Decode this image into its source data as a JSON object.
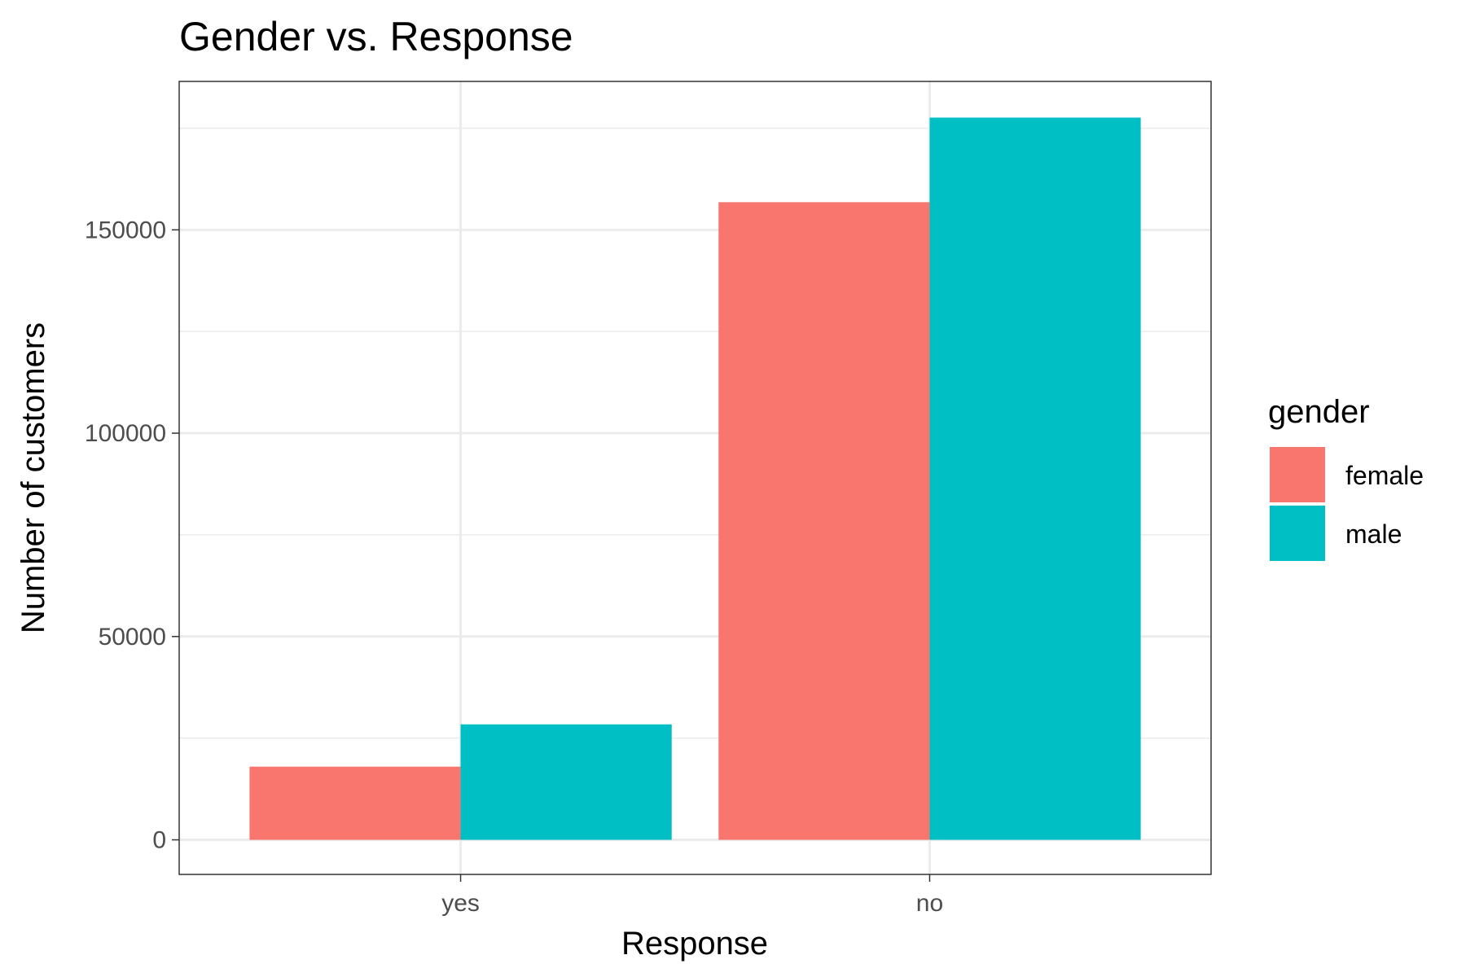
{
  "chart_data": {
    "type": "bar",
    "title": "Gender vs. Response",
    "xlabel": "Response",
    "ylabel": "Number of customers",
    "categories": [
      "yes",
      "no"
    ],
    "series": [
      {
        "name": "female",
        "color": "#F8766D",
        "values": [
          18000,
          156800
        ]
      },
      {
        "name": "male",
        "color": "#00BFC4",
        "values": [
          28400,
          177600
        ]
      }
    ],
    "yticks": [
      0,
      50000,
      100000,
      150000
    ],
    "ylim": [
      -8500,
      186500
    ],
    "legend": {
      "title": "gender",
      "position": "right"
    },
    "grid": true
  }
}
